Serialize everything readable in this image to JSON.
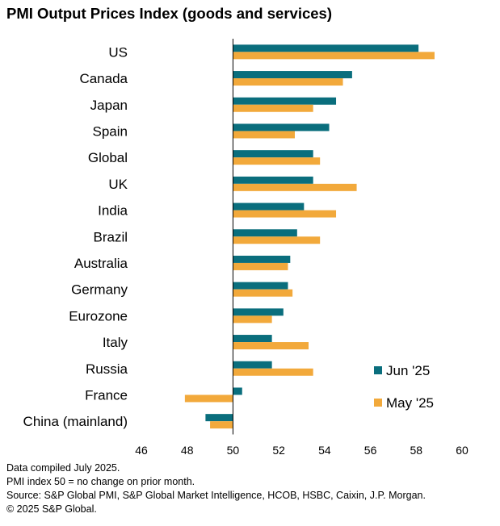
{
  "title": "PMI Output Prices Index (goods and services)",
  "chart_data": {
    "type": "bar",
    "orientation": "horizontal",
    "categories": [
      "US",
      "Canada",
      "Japan",
      "Spain",
      "Global",
      "UK",
      "India",
      "Brazil",
      "Australia",
      "Germany",
      "Eurozone",
      "Italy",
      "Russia",
      "France",
      "China (mainland)"
    ],
    "series": [
      {
        "name": "Jun '25",
        "color": "#0a6e7d",
        "values": [
          58.1,
          55.2,
          54.5,
          54.2,
          53.5,
          53.5,
          53.1,
          52.8,
          52.5,
          52.4,
          52.2,
          51.7,
          51.7,
          50.4,
          48.8
        ]
      },
      {
        "name": "May '25",
        "color": "#f2a93b",
        "values": [
          58.8,
          54.8,
          53.5,
          52.7,
          53.8,
          55.4,
          54.5,
          53.8,
          52.4,
          52.6,
          51.7,
          53.3,
          53.5,
          47.9,
          49.0
        ]
      }
    ],
    "xlim": [
      46,
      60
    ],
    "xticks": [
      46,
      48,
      50,
      52,
      54,
      56,
      58,
      60
    ],
    "baseline": 50,
    "legend_position": "lower-right",
    "grid": false
  },
  "notes": [
    "Data compiled July 2025.",
    "PMI index 50 = no change on prior month.",
    "Source: S&P Global PMI, S&P Global Market Intelligence, HCOB, HSBC, Caixin, J.P. Morgan.",
    "© 2025 S&P Global."
  ]
}
